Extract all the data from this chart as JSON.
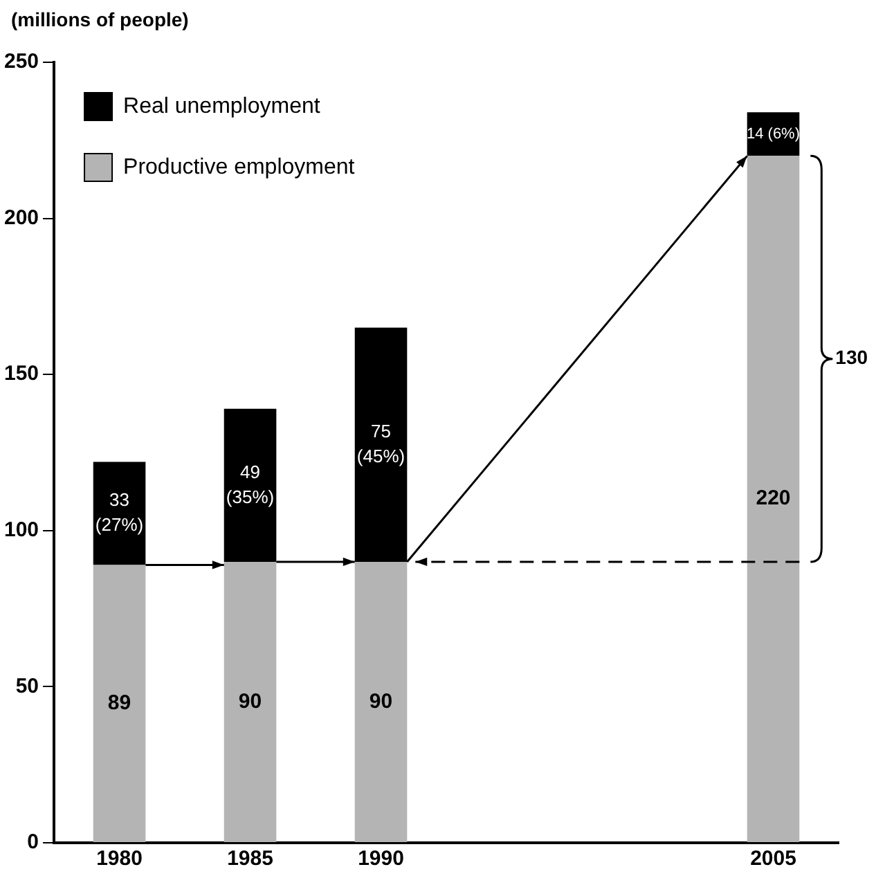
{
  "chart_data": {
    "type": "bar",
    "ylabel": "(millions of people)",
    "categories": [
      "1980",
      "1985",
      "1990",
      null,
      null,
      "2005"
    ],
    "stacked": true,
    "legend": "top left",
    "grid": false,
    "series": [
      {
        "name": "Productive employment",
        "color": "#b4b4b4",
        "values": [
          89,
          90,
          90,
          null,
          null,
          220
        ],
        "value_labels": [
          "89",
          "90",
          "90",
          null,
          null,
          "220"
        ]
      },
      {
        "name": "Real unemployment",
        "color": "#000000",
        "values": [
          33,
          49,
          75,
          null,
          null,
          14
        ],
        "value_labels": [
          "33 (27%)",
          "49 (35%)",
          "75 (45%)",
          null,
          null,
          "14 (6%)"
        ]
      }
    ],
    "ylim": [
      0,
      250
    ],
    "yticks": [
      0,
      50,
      100,
      150,
      200,
      250
    ],
    "annotations": [
      "130"
    ]
  }
}
